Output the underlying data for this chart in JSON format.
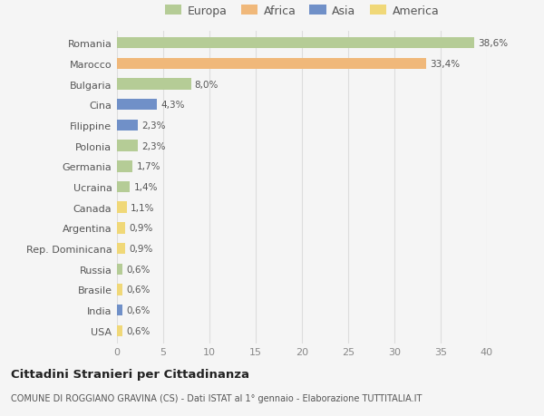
{
  "categories": [
    "Romania",
    "Marocco",
    "Bulgaria",
    "Cina",
    "Filippine",
    "Polonia",
    "Germania",
    "Ucraina",
    "Canada",
    "Argentina",
    "Rep. Dominicana",
    "Russia",
    "Brasile",
    "India",
    "USA"
  ],
  "values": [
    38.6,
    33.4,
    8.0,
    4.3,
    2.3,
    2.3,
    1.7,
    1.4,
    1.1,
    0.9,
    0.9,
    0.6,
    0.6,
    0.6,
    0.6
  ],
  "labels": [
    "38,6%",
    "33,4%",
    "8,0%",
    "4,3%",
    "2,3%",
    "2,3%",
    "1,7%",
    "1,4%",
    "1,1%",
    "0,9%",
    "0,9%",
    "0,6%",
    "0,6%",
    "0,6%",
    "0,6%"
  ],
  "colors": [
    "#b5cc96",
    "#f0b87a",
    "#b5cc96",
    "#7090c8",
    "#7090c8",
    "#b5cc96",
    "#b5cc96",
    "#b5cc96",
    "#f0d878",
    "#f0d878",
    "#f0d878",
    "#b5cc96",
    "#f0d878",
    "#7090c8",
    "#f0d878"
  ],
  "legend_labels": [
    "Europa",
    "Africa",
    "Asia",
    "America"
  ],
  "legend_colors": [
    "#b5cc96",
    "#f0b87a",
    "#7090c8",
    "#f0d878"
  ],
  "title": "Cittadini Stranieri per Cittadinanza",
  "subtitle": "COMUNE DI ROGGIANO GRAVINA (CS) - Dati ISTAT al 1° gennaio - Elaborazione TUTTITALIA.IT",
  "xlim": [
    0,
    40
  ],
  "xticks": [
    0,
    5,
    10,
    15,
    20,
    25,
    30,
    35,
    40
  ],
  "bg_color": "#f5f5f5",
  "grid_color": "#dddddd",
  "bar_height": 0.55
}
